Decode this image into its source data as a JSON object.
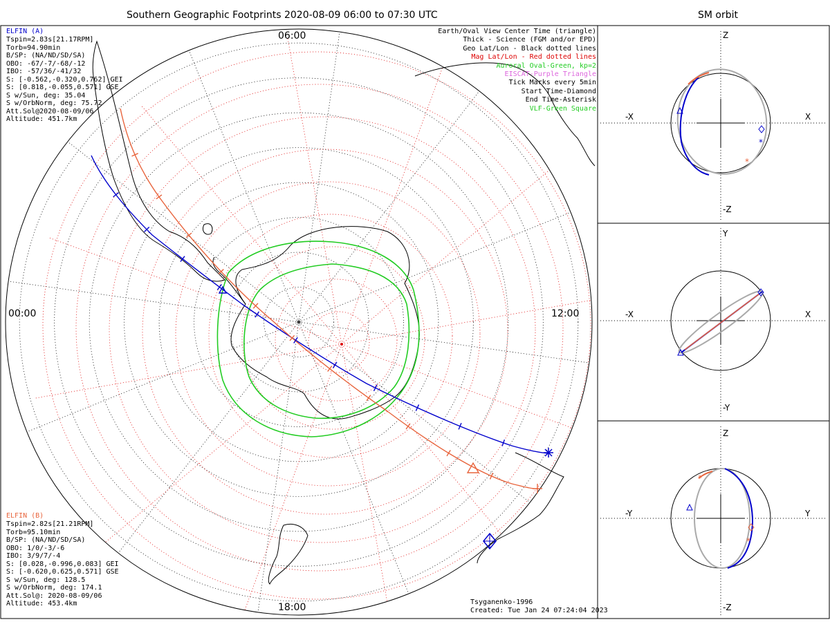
{
  "main_title": "Southern Geographic Footprints 2020-08-09 06:00 to 07:30 UTC",
  "side_title": "SM orbit",
  "time_labels": {
    "top": "06:00",
    "left": "00:00",
    "right": "12:00",
    "bottom": "18:00"
  },
  "elfin_a": {
    "name": "ELFIN (A)",
    "color": "#0000cc",
    "lines": [
      "Tspin=2.83s[21.17RPM]",
      "Torb=94.90min",
      "B/SP: (NA/ND/SD/SA)",
      "OBO: -67/-7/-68/-12",
      "IBO: -57/36/-41/32",
      "S: [-0.562,-0.320,0.762] GEI",
      "S: [0.818,-0.055,0.571] GSE",
      "S w/Sun, deg: 35.04",
      "S w/OrbNorm, deg: 75.72",
      "Att.Sol@2020-08-09/06",
      "Altitude: 451.7km"
    ]
  },
  "elfin_b": {
    "name": "ELFIN (B)",
    "color": "#e8643c",
    "lines": [
      "Tspin=2.82s[21.21RPM]",
      "Torb=95.10min",
      "B/SP: (NA/ND/SD/SA)",
      "OBO: 1/0/-3/-6",
      "IBO: 3/9/7/-4",
      "S: [0.028,-0.996,0.083] GEI",
      "S: [-0.620,0.625,0.571] GSE",
      "S w/Sun, deg: 128.5",
      "S w/OrbNorm, deg: 174.1",
      "Att.Sol@: 2020-08-09/06",
      "Altitude: 453.4km"
    ]
  },
  "legend": [
    {
      "text": "Earth/Oval View Center Time (triangle)",
      "color": "#000000"
    },
    {
      "text": "Thick - Science (FGM and/or EPD)",
      "color": "#000000"
    },
    {
      "text": "Geo Lat/Lon - Black dotted lines",
      "color": "#000000"
    },
    {
      "text": "Mag Lat/Lon - Red dotted lines",
      "color": "#dd0000"
    },
    {
      "text": "Auroral Oval-Green, kp=2",
      "color": "#22cc22"
    },
    {
      "text": "EISCAT-Purple Triangle",
      "color": "#dd66dd"
    },
    {
      "text": "Tick Marks every 5min",
      "color": "#000000"
    },
    {
      "text": "Start Time-Diamond",
      "color": "#000000"
    },
    {
      "text": "End Time-Asterisk",
      "color": "#000000"
    },
    {
      "text": "VLF-Green Square",
      "color": "#22cc22"
    }
  ],
  "footer": {
    "model": "Tsyganenko-1996",
    "created": "Created: Tue Jan 24 07:24:04 2023"
  },
  "panels": [
    {
      "top": "Z",
      "bottom": "-Z",
      "left": "-X",
      "right": "X"
    },
    {
      "top": "Y",
      "bottom": "-Y",
      "left": "-X",
      "right": "X"
    },
    {
      "top": "Z",
      "bottom": "-Z",
      "left": "-Y",
      "right": "Y"
    }
  ],
  "colors": {
    "elfin_a": "#0000cc",
    "elfin_b": "#e8643c",
    "oval": "#22cc22",
    "mag_grid": "#dd0000",
    "geo_grid": "#000000",
    "model_orbit": "#aaaaaa"
  }
}
